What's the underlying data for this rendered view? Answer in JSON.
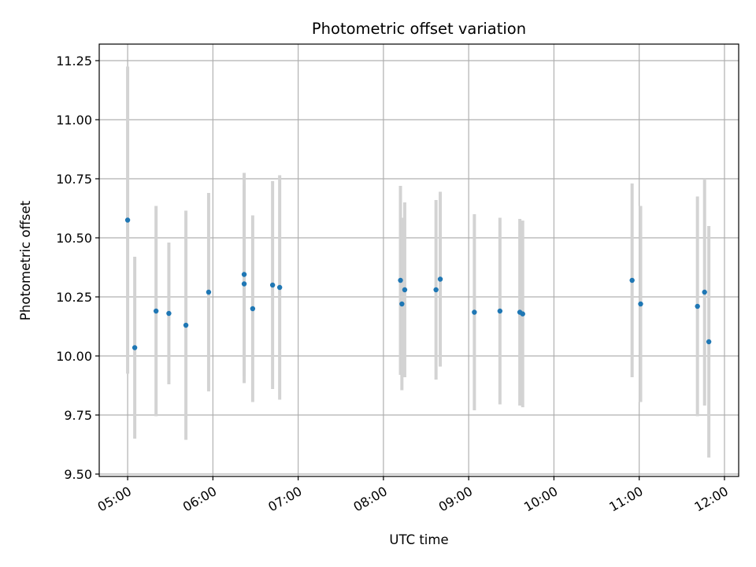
{
  "chart_data": {
    "type": "scatter",
    "title": "Photometric offset variation",
    "xlabel": "UTC time",
    "ylabel": "Photometric offset",
    "x_axis": {
      "type": "time",
      "min": "04:40",
      "max": "12:10",
      "ticks": [
        "05:00",
        "06:00",
        "07:00",
        "08:00",
        "09:00",
        "10:00",
        "11:00",
        "12:00"
      ],
      "tick_rotation_deg": 30
    },
    "ylim": [
      9.49,
      11.32
    ],
    "yticks": [
      "9.50",
      "9.75",
      "10.00",
      "10.25",
      "10.50",
      "10.75",
      "11.00",
      "11.25"
    ],
    "grid": true,
    "colors": {
      "point": "#1f77b4",
      "errorbar": "#d3d3d3",
      "grid": "#b0b0b0",
      "axes": "#000000"
    },
    "points": [
      {
        "x": "05:00",
        "y": 10.575,
        "yerr": 0.65
      },
      {
        "x": "05:05",
        "y": 10.035,
        "yerr": 0.385
      },
      {
        "x": "05:20",
        "y": 10.19,
        "yerr": 0.445
      },
      {
        "x": "05:29",
        "y": 10.18,
        "yerr": 0.3
      },
      {
        "x": "05:41",
        "y": 10.13,
        "yerr": 0.485
      },
      {
        "x": "05:57",
        "y": 10.27,
        "yerr": 0.42
      },
      {
        "x": "06:22",
        "y": 10.345,
        "yerr": 0.43
      },
      {
        "x": "06:22",
        "y": 10.305,
        "yerr": 0.42
      },
      {
        "x": "06:28",
        "y": 10.2,
        "yerr": 0.395
      },
      {
        "x": "06:42",
        "y": 10.3,
        "yerr": 0.44
      },
      {
        "x": "06:47",
        "y": 10.29,
        "yerr": 0.475
      },
      {
        "x": "08:12",
        "y": 10.32,
        "yerr": 0.4
      },
      {
        "x": "08:13",
        "y": 10.22,
        "yerr": 0.365
      },
      {
        "x": "08:15",
        "y": 10.28,
        "yerr": 0.37
      },
      {
        "x": "08:37",
        "y": 10.28,
        "yerr": 0.38
      },
      {
        "x": "08:40",
        "y": 10.325,
        "yerr": 0.37
      },
      {
        "x": "09:04",
        "y": 10.185,
        "yerr": 0.415
      },
      {
        "x": "09:22",
        "y": 10.19,
        "yerr": 0.395
      },
      {
        "x": "09:36",
        "y": 10.185,
        "yerr": 0.395
      },
      {
        "x": "09:38",
        "y": 10.178,
        "yerr": 0.395
      },
      {
        "x": "10:55",
        "y": 10.32,
        "yerr": 0.41
      },
      {
        "x": "11:01",
        "y": 10.22,
        "yerr": 0.415
      },
      {
        "x": "11:41",
        "y": 10.21,
        "yerr": 0.465
      },
      {
        "x": "11:46",
        "y": 10.27,
        "yerr": 0.48
      },
      {
        "x": "11:49",
        "y": 10.06,
        "yerr": 0.49
      }
    ]
  }
}
